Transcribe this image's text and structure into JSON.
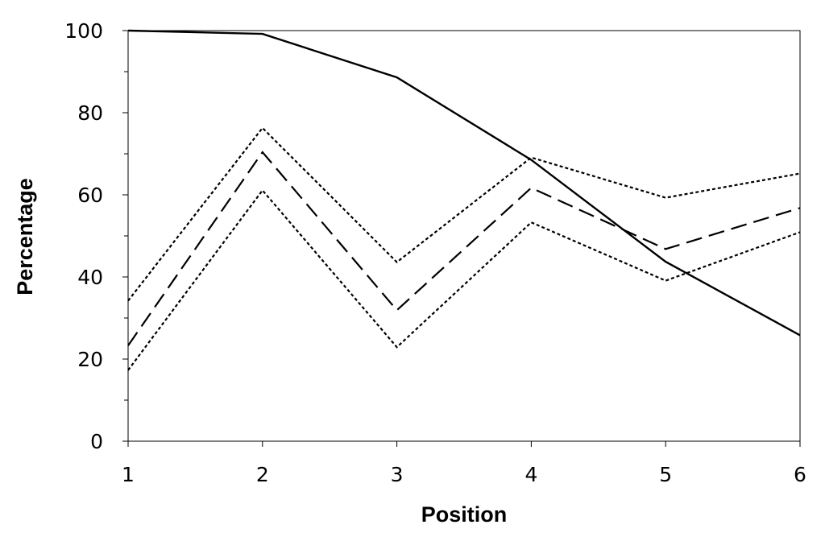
{
  "chart_data": {
    "type": "line",
    "title": "",
    "xlabel": "Position",
    "ylabel": "Percentage",
    "x": [
      1,
      2,
      3,
      4,
      5,
      6
    ],
    "xlim": [
      1,
      6
    ],
    "ylim": [
      0,
      100
    ],
    "y_ticks": [
      0,
      20,
      40,
      60,
      80,
      100
    ],
    "x_ticks": [
      1,
      2,
      3,
      4,
      5,
      6
    ],
    "grid": false,
    "legend": "none",
    "series": [
      {
        "values": [
          100,
          99.2,
          88.6,
          68.5,
          43.7,
          25.8
        ],
        "style": "solid"
      },
      {
        "values": [
          34.2,
          76.3,
          43.6,
          69.1,
          59.3,
          65.2
        ],
        "style": "dotted"
      },
      {
        "values": [
          23.3,
          70.4,
          31.9,
          61.7,
          46.8,
          56.8
        ],
        "style": "dashed"
      },
      {
        "values": [
          17.3,
          61.1,
          22.9,
          53.3,
          39.1,
          50.9
        ],
        "style": "dotted"
      }
    ],
    "colors": {
      "line": "#000000",
      "background": "#ffffff"
    }
  }
}
